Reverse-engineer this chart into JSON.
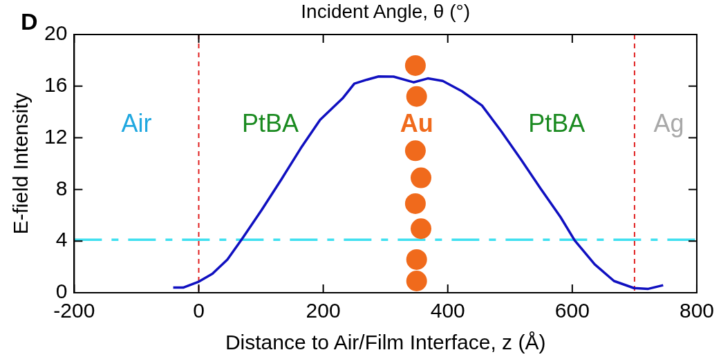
{
  "chart_data": {
    "type": "line",
    "xlabel": "Distance to Air/Film Interface, z (Å)",
    "ylabel": "E-field Intensity",
    "xlim": [
      -200,
      800
    ],
    "xticks": [
      -200,
      0,
      200,
      400,
      600,
      800
    ],
    "ylim": [
      0,
      20
    ],
    "yticks": [
      0,
      4,
      8,
      12,
      16,
      20
    ],
    "grid": false,
    "legend": false,
    "marker": "none",
    "line_style": "solid",
    "series": [
      {
        "color": "#1010c0",
        "x": [
          -41,
          -25,
          -1,
          22,
          46,
          70,
          101,
          133,
          164,
          195,
          231,
          250,
          270,
          289,
          313,
          345,
          368,
          392,
          423,
          455,
          486,
          518,
          549,
          581,
          604,
          636,
          667,
          699,
          722,
          746
        ],
        "values": [
          0.4,
          0.4,
          0.83,
          1.47,
          2.57,
          4.2,
          6.4,
          8.8,
          11.2,
          13.4,
          15.05,
          16.2,
          16.5,
          16.75,
          16.74,
          16.3,
          16.6,
          16.4,
          15.6,
          14.5,
          12.5,
          10.3,
          8.07,
          5.87,
          4.04,
          2.2,
          0.91,
          0.36,
          0.3,
          0.58
        ]
      },
      {
        "type": "scatter",
        "marker": "circle",
        "color": "#f06a1c",
        "x": [
          348,
          350,
          348,
          357,
          348,
          357,
          350,
          350
        ],
        "values": [
          17.6,
          15.2,
          11.0,
          8.9,
          6.9,
          4.96,
          2.57,
          0.91
        ]
      }
    ],
    "ref_lines": [
      {
        "axis": "x",
        "value": 0,
        "color": "#e02020",
        "line_style": "dashed"
      },
      {
        "axis": "x",
        "value": 700,
        "color": "#e02020",
        "line_style": "dashed"
      },
      {
        "axis": "y",
        "value": 4.1,
        "color": "#40e0f0",
        "line_style": "dashed"
      }
    ],
    "annotations": [
      "D",
      "Incident Angle, θ (°)",
      "Air",
      "PtBA",
      "Au",
      "PtBA",
      "Ag"
    ]
  }
}
